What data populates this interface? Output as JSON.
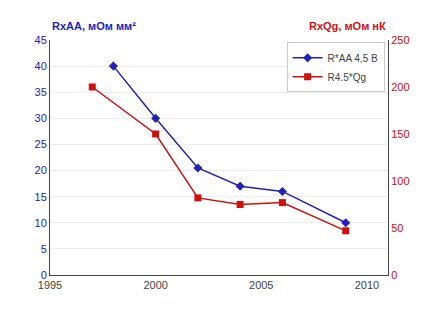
{
  "chart_data": {
    "type": "line",
    "ylabel": "RxAA, мОм мм²",
    "y2label": "RxQg, мОм нК",
    "series": [
      {
        "name": "R*AA 4,5 В",
        "color": "#2222bb",
        "marker": "diamond",
        "axis": "y",
        "x": [
          1998,
          2000,
          2002,
          2004,
          2006,
          2009
        ],
        "values": [
          40,
          30,
          20.5,
          17,
          16,
          10
        ]
      },
      {
        "name": "R4.5*Qg",
        "color": "#cc1111",
        "marker": "square",
        "axis": "y2",
        "x": [
          1997,
          2000,
          2002,
          2004,
          2006,
          2009
        ],
        "values": [
          200,
          150,
          82,
          75,
          77,
          47
        ]
      }
    ],
    "xlim": [
      1995,
      2011
    ],
    "xticks": [
      1995,
      2000,
      2005,
      2010
    ],
    "ylim": [
      0,
      45
    ],
    "yticks": [
      0,
      5,
      10,
      15,
      20,
      25,
      30,
      35,
      40,
      45
    ],
    "y2lim": [
      0,
      250
    ],
    "y2ticks": [
      0,
      50,
      100,
      150,
      200,
      250
    ],
    "grid": true,
    "legend": "upper right"
  }
}
